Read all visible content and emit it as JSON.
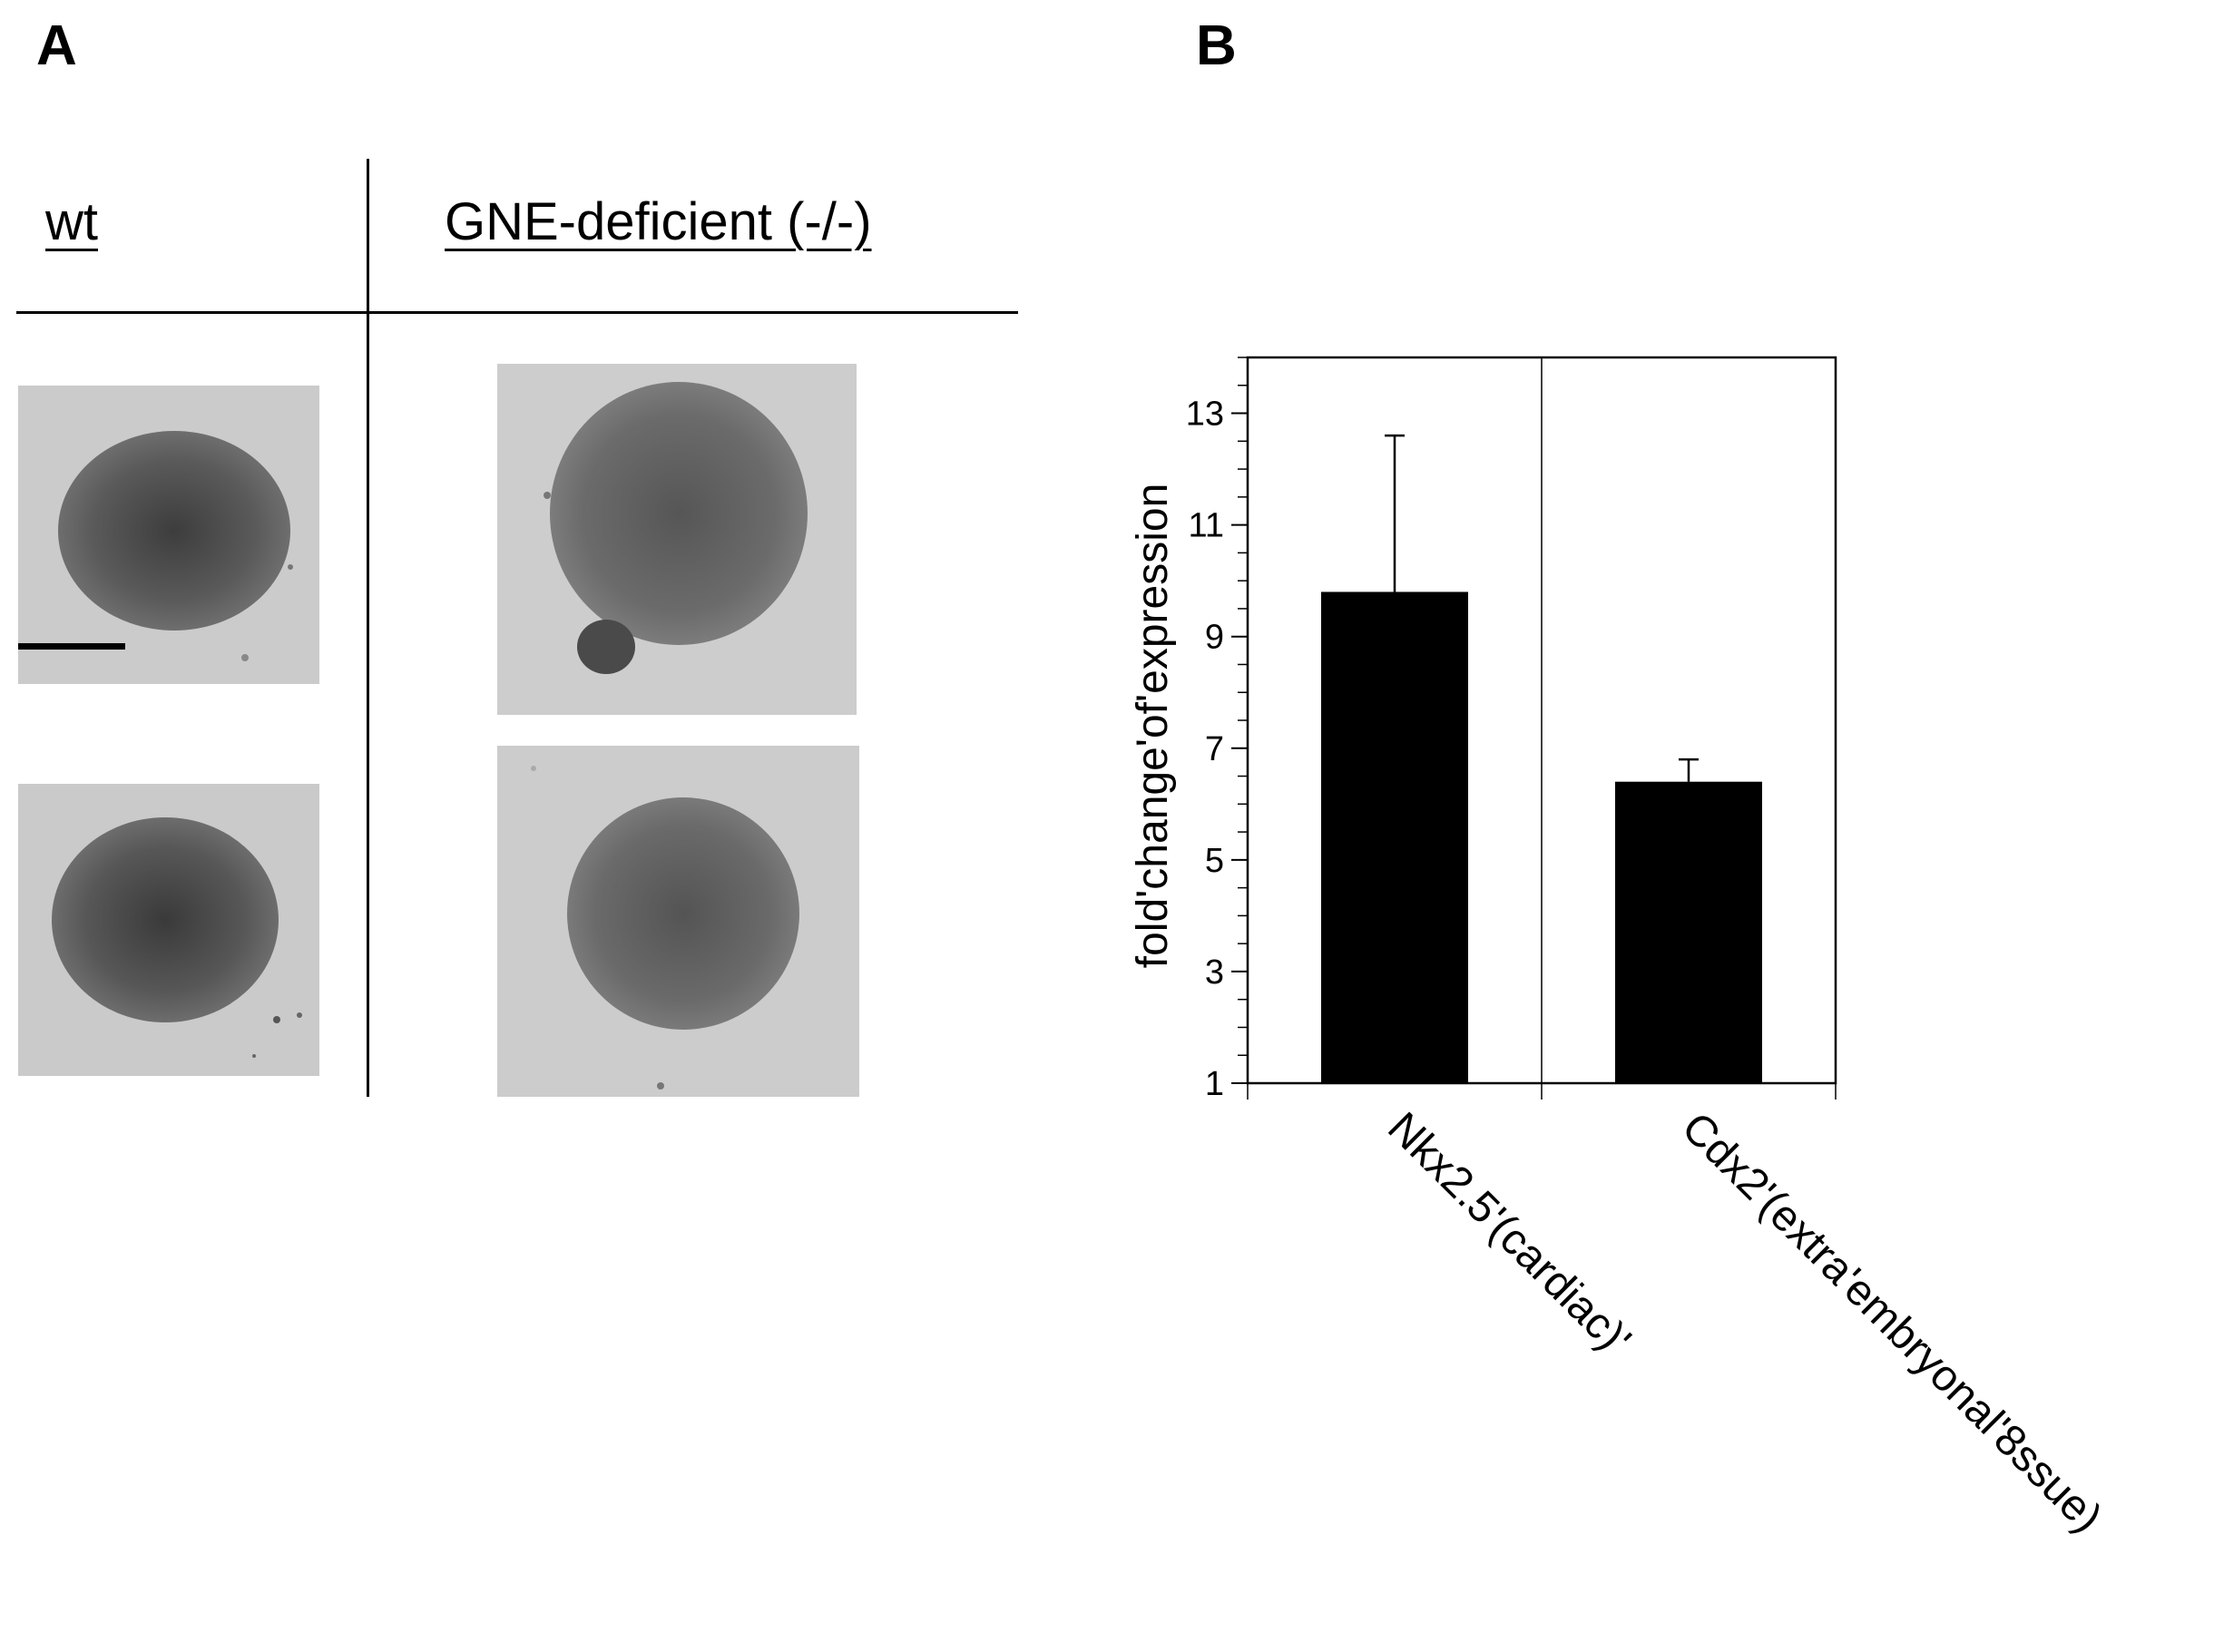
{
  "figure": {
    "panel_a": {
      "letter": "A",
      "columns": [
        "wt",
        "GNE-deficient (-/-)"
      ]
    },
    "panel_b": {
      "letter": "B"
    }
  },
  "chart_data": {
    "type": "bar",
    "categories": [
      "Nkx2.5'(cardiac)'",
      "Cdx2'(extra'embryonal'8ssue)"
    ],
    "values": [
      9.8,
      6.4
    ],
    "error_bars": [
      2.8,
      0.4
    ],
    "ylabel": "fold'change'of'expression",
    "xlabel": "",
    "ylim": [
      1,
      14
    ],
    "yticks": [
      1,
      3,
      5,
      7,
      9,
      11,
      13
    ],
    "minor_tick_step": 0.5,
    "bar_color": "#000000",
    "grid": false,
    "legend": "none"
  }
}
